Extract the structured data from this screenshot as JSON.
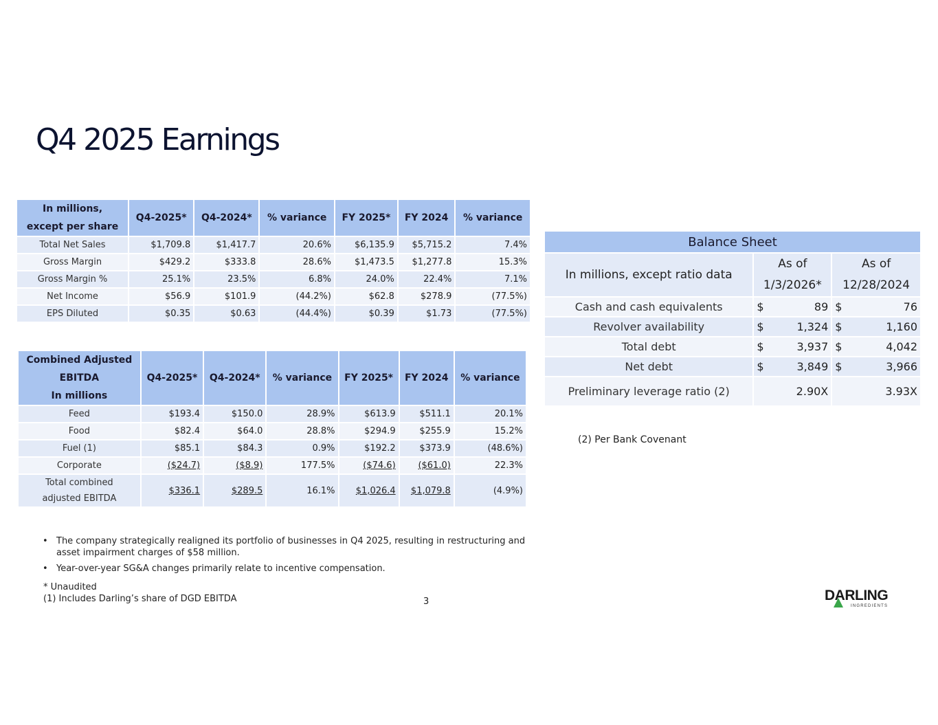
{
  "title": "Q4 2025 Earnings",
  "table1": {
    "headers": [
      "In millions,\nexcept per share",
      "Q4-2025*",
      "Q4-2024*",
      "% variance",
      "FY 2025*",
      "FY 2024",
      "% variance"
    ],
    "rows": [
      [
        "Total Net Sales",
        "$1,709.8",
        "$1,417.7",
        "20.6%",
        "$6,135.9",
        "$5,715.2",
        "7.4%"
      ],
      [
        "Gross Margin",
        "$429.2",
        "$333.8",
        "28.6%",
        "$1,473.5",
        "$1,277.8",
        "15.3%"
      ],
      [
        "Gross Margin %",
        "25.1%",
        "23.5%",
        "6.8%",
        "24.0%",
        "22.4%",
        "7.1%"
      ],
      [
        "Net Income",
        "$56.9",
        "$101.9",
        "(44.2%)",
        "$62.8",
        "$278.9",
        "(77.5%)"
      ],
      [
        "EPS Diluted",
        "$0.35",
        "$0.63",
        "(44.4%)",
        "$0.39",
        "$1.73",
        "(77.5%)"
      ]
    ]
  },
  "table2": {
    "headers": [
      "Combined Adjusted\nEBITDA\nIn millions",
      "Q4-2025*",
      "Q4-2024*",
      "% variance",
      "FY 2025*",
      "FY 2024",
      "% variance"
    ],
    "rows": [
      [
        "Feed",
        "$193.4",
        "$150.0",
        "28.9%",
        "$613.9",
        "$511.1",
        "20.1%"
      ],
      [
        "Food",
        "$82.4",
        "$64.0",
        "28.8%",
        "$294.9",
        "$255.9",
        "15.2%"
      ],
      [
        "Fuel (1)",
        "$85.1",
        "$84.3",
        "0.9%",
        "$192.2",
        "$373.9",
        "(48.6%)"
      ],
      [
        "Corporate",
        "($24.7)",
        "($8.9)",
        "177.5%",
        "($74.6)",
        "($61.0)",
        "22.3%"
      ],
      [
        "Total combined\nadjusted EBITDA",
        "$336.1",
        "$289.5",
        "16.1%",
        "$1,026.4",
        "$1,079.8",
        "(4.9%)"
      ]
    ]
  },
  "balance": {
    "title": "Balance Sheet",
    "header_label": "In millions, except ratio data",
    "col1": "As of\n1/3/2026*",
    "col2": "As of\n12/28/2024",
    "rows": [
      {
        "label": "Cash and cash equivalents",
        "cur": "$",
        "v1": "89",
        "v2": "76"
      },
      {
        "label": "Revolver availability",
        "cur": "$",
        "v1": "1,324",
        "v2": "1,160"
      },
      {
        "label": "Total debt",
        "cur": "$",
        "v1": "3,937",
        "v2": "4,042"
      },
      {
        "label": "Net debt",
        "cur": "$",
        "v1": "3,849",
        "v2": "3,966"
      },
      {
        "label": "Preliminary leverage ratio (2)",
        "cur": "",
        "v1": "2.90X",
        "v2": "3.93X"
      }
    ]
  },
  "note": "(2) Per Bank Covenant",
  "bullets": [
    "The company strategically realigned its portfolio of businesses in Q4 2025, resulting in restructuring and asset impairment charges of $58 million.",
    "Year-over-year SG&A changes primarily relate to incentive compensation."
  ],
  "footnotes": [
    "* Unaudited",
    "(1) Includes Darling’s share of DGD EBITDA"
  ],
  "page_number": "3",
  "logo": {
    "name": "DARLING",
    "sub": "INGREDIENTS",
    "accent": "#3aa64a"
  }
}
